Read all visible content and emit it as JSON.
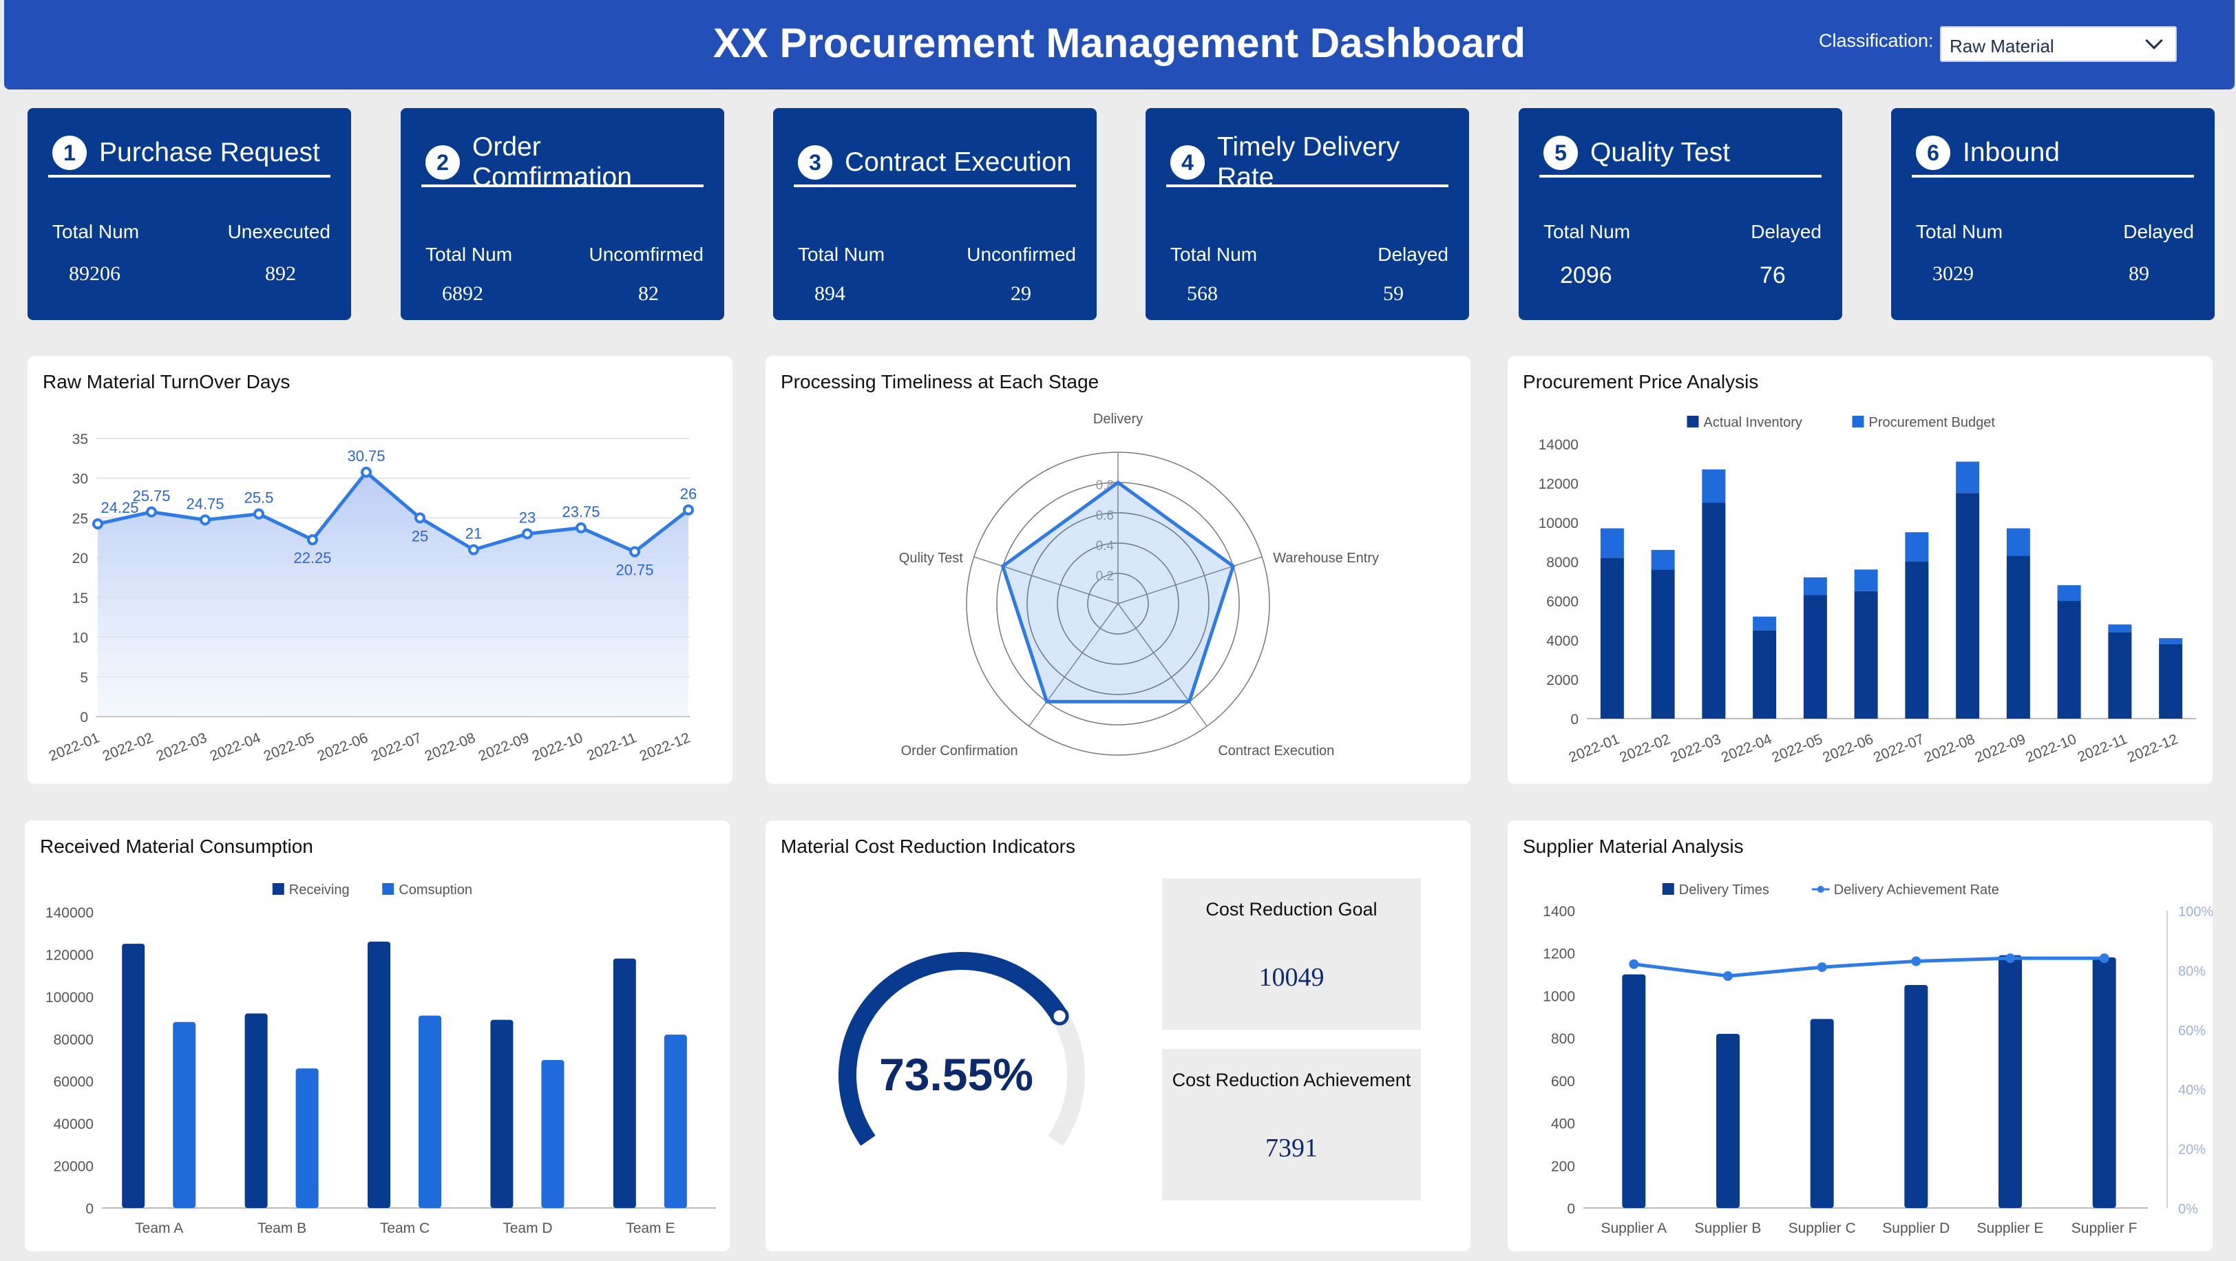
{
  "header": {
    "title": "XX Procurement Management Dashboard",
    "classification_label": "Classification:",
    "classification_value": "Raw Material"
  },
  "kpis": [
    {
      "num": "1",
      "title": "Purchase Request",
      "left_label": "Total Num",
      "right_label": "Unexecuted",
      "left_value": "89206",
      "right_value": "892"
    },
    {
      "num": "2",
      "title": "Order Comfirmation",
      "left_label": "Total Num",
      "right_label": "Uncomfirmed",
      "left_value": "6892",
      "right_value": "82"
    },
    {
      "num": "3",
      "title": "Contract Execution",
      "left_label": "Total Num",
      "right_label": "Unconfirmed",
      "left_value": "894",
      "right_value": "29"
    },
    {
      "num": "4",
      "title": "Timely Delivery Rate",
      "left_label": "Total Num",
      "right_label": "Delayed",
      "left_value": "568",
      "right_value": "59"
    },
    {
      "num": "5",
      "title": "Quality Test",
      "left_label": "Total Num",
      "right_label": "Delayed",
      "left_value": "2096",
      "right_value": "76"
    },
    {
      "num": "6",
      "title": "Inbound",
      "left_label": "Total Num",
      "right_label": "Delayed",
      "left_value": "3029",
      "right_value": "89"
    }
  ],
  "panels": {
    "turnover": "Raw Material TurnOver Days",
    "timeliness": "Processing Timeliness at Each Stage",
    "price": "Procurement Price Analysis",
    "consumption": "Received Material Consumption",
    "cost": "Material Cost Reduction Indicators",
    "supplier": "Supplier Material Analysis"
  },
  "cost_reduction": {
    "percent": "73.55%",
    "fraction": 0.7355,
    "goal_label": "Cost Reduction Goal",
    "goal_value": "10049",
    "achievement_label": "Cost Reduction Achievement",
    "achievement_value": "7391"
  },
  "colors": {
    "header": "#2350b8",
    "kpi_card": "#083a8f",
    "dark_blue": "#083a8f",
    "bright_blue": "#1f6bdc",
    "line_blue": "#2f7be6"
  },
  "chart_data": [
    {
      "id": "turnover",
      "type": "area",
      "categories": [
        "2022-01",
        "2022-02",
        "2022-03",
        "2022-04",
        "2022-05",
        "2022-06",
        "2022-07",
        "2022-08",
        "2022-09",
        "2022-10",
        "2022-11",
        "2022-12"
      ],
      "values": [
        24.25,
        25.75,
        24.75,
        25.5,
        22.25,
        30.75,
        25,
        21,
        23,
        23.75,
        20.75,
        26
      ],
      "value_labels": [
        "24.25",
        "25.75",
        "24.75",
        "25.5",
        "22.25",
        "30.75",
        "25",
        "21",
        "23",
        "23.75",
        "20.75",
        "26"
      ],
      "ylim": [
        0,
        35
      ],
      "yticks": [
        "0",
        "5",
        "10",
        "15",
        "20",
        "25",
        "30",
        "35"
      ],
      "grid": true
    },
    {
      "id": "timeliness",
      "type": "radar",
      "axes": [
        "Delivery",
        "Warehouse Entry",
        "Contract Execution",
        "Order Confirmation",
        "Qulity Test"
      ],
      "values": [
        0.8,
        0.8,
        0.8,
        0.8,
        0.8
      ],
      "rings": [
        "0.2",
        "0.4",
        "0.6",
        "0.8"
      ],
      "max": 1.0
    },
    {
      "id": "price",
      "type": "bar",
      "stacked": true,
      "categories": [
        "2022-01",
        "2022-02",
        "2022-03",
        "2022-04",
        "2022-05",
        "2022-06",
        "2022-07",
        "2022-08",
        "2022-09",
        "2022-10",
        "2022-11",
        "2022-12"
      ],
      "series": [
        {
          "name": "Actual Inventory",
          "values": [
            8200,
            7600,
            11000,
            4500,
            6300,
            6500,
            8000,
            11500,
            8300,
            6000,
            4400,
            3800
          ]
        },
        {
          "name": "Procurement Budget",
          "values": [
            1500,
            1000,
            1700,
            700,
            900,
            1100,
            1500,
            1600,
            1400,
            800,
            400,
            300
          ]
        }
      ],
      "ylim": [
        0,
        14000
      ],
      "yticks": [
        "0",
        "2000",
        "4000",
        "6000",
        "8000",
        "10000",
        "12000",
        "14000"
      ],
      "legend": "top-center"
    },
    {
      "id": "consumption",
      "type": "bar",
      "categories": [
        "Team A",
        "Team B",
        "Team C",
        "Team D",
        "Team E"
      ],
      "series": [
        {
          "name": "Receiving",
          "values": [
            125000,
            92000,
            126000,
            89000,
            118000
          ]
        },
        {
          "name": "Comsuption",
          "values": [
            88000,
            66000,
            91000,
            70000,
            82000
          ]
        }
      ],
      "ylim": [
        0,
        140000
      ],
      "yticks": [
        "0",
        "20000",
        "40000",
        "60000",
        "80000",
        "100000",
        "120000",
        "140000"
      ],
      "legend": "top-center"
    },
    {
      "id": "supplier",
      "type": "bar",
      "categories": [
        "Supplier A",
        "Supplier B",
        "Supplier C",
        "Supplier D",
        "Supplier E",
        "Supplier F"
      ],
      "series": [
        {
          "name": "Delivery Times",
          "values": [
            1100,
            820,
            890,
            1050,
            1190,
            1180
          ]
        },
        {
          "name": "Delivery Achievement Rate",
          "type": "line",
          "values": [
            0.82,
            0.78,
            0.81,
            0.83,
            0.84,
            0.84
          ]
        }
      ],
      "ylim": [
        0,
        1400
      ],
      "yticks": [
        "0",
        "200",
        "400",
        "600",
        "800",
        "1000",
        "1200",
        "1400"
      ],
      "y2lim": [
        0,
        1
      ],
      "y2ticks": [
        "0%",
        "20%",
        "40%",
        "60%",
        "80%",
        "100%"
      ],
      "legend": "top-center"
    }
  ]
}
